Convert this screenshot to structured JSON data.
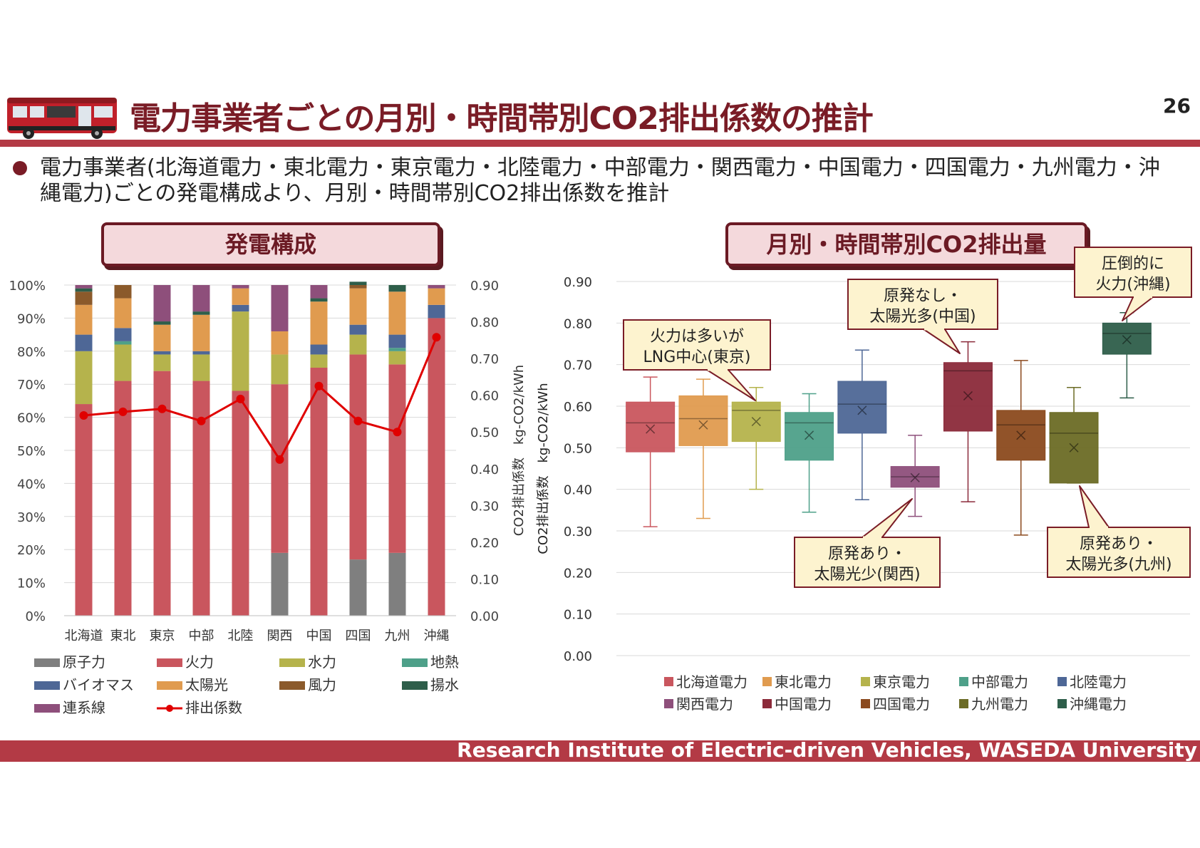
{
  "slide": {
    "title": "電力事業者ごとの月別・時間帯別CO2排出係数の推計",
    "page_number": "26",
    "bullet": "電力事業者(北海道電力・東北電力・東京電力・北陸電力・中部電力・関西電力・中国電力・四国電力・九州電力・沖縄電力)ごとの発電構成より、月別・時間帯別CO2排出係数を推計",
    "left_header": "発電構成",
    "right_header": "月別・時間帯別CO2排出量",
    "footer": "Research Institute of Electric-driven Vehicles, WASEDA University"
  },
  "colors": {
    "brand": "#b33a45",
    "brand_dark": "#7a1c26",
    "box_fill": "#f4d9dc",
    "callout_fill": "#fdf3cf"
  },
  "icons": {
    "bus": "bus-illustration"
  },
  "chart_data": [
    {
      "type": "bar",
      "stacked": true,
      "title": "発電構成",
      "categories": [
        "北海道",
        "東北",
        "東京",
        "中部",
        "北陸",
        "関西",
        "中国",
        "四国",
        "九州",
        "沖縄"
      ],
      "ylim": [
        0,
        100
      ],
      "y_ticks": [
        "0%",
        "10%",
        "20%",
        "30%",
        "40%",
        "50%",
        "60%",
        "70%",
        "80%",
        "90%",
        "100%"
      ],
      "y2lim": [
        0,
        0.9
      ],
      "y2_ticks": [
        "0.00",
        "0.10",
        "0.20",
        "0.30",
        "0.40",
        "0.50",
        "0.60",
        "0.70",
        "0.80",
        "0.90"
      ],
      "y2label": "CO2排出係数　kg-CO2/kWh",
      "series": [
        {
          "name": "原子力",
          "color": "#7f7f7f",
          "values": [
            0,
            0,
            0,
            0,
            0,
            19,
            0,
            17,
            19,
            0
          ]
        },
        {
          "name": "火力",
          "color": "#c9565e",
          "values": [
            64,
            71,
            74,
            71,
            68,
            51,
            75,
            62,
            57,
            90
          ]
        },
        {
          "name": "水力",
          "color": "#b5b34c",
          "values": [
            16,
            11,
            5,
            8,
            24,
            9,
            4,
            6,
            4,
            0
          ]
        },
        {
          "name": "地熱",
          "color": "#4ea089",
          "values": [
            0,
            1,
            0,
            0,
            0,
            0,
            0,
            0,
            1,
            0
          ]
        },
        {
          "name": "バイオマス",
          "color": "#4e6796",
          "values": [
            5,
            4,
            1,
            1,
            2,
            0,
            3,
            3,
            4,
            4
          ]
        },
        {
          "name": "太陽光",
          "color": "#e09b4f",
          "values": [
            9,
            9,
            8,
            11,
            5,
            7,
            13,
            11,
            13,
            5
          ]
        },
        {
          "name": "風力",
          "color": "#8b5a2b",
          "values": [
            4,
            4,
            0,
            0,
            0,
            0,
            0,
            1,
            0,
            0
          ]
        },
        {
          "name": "揚水",
          "color": "#2e5e4a",
          "values": [
            1,
            0,
            1,
            1,
            0,
            0,
            1,
            1,
            2,
            0
          ]
        },
        {
          "name": "連系線",
          "color": "#8e4f7b",
          "values": [
            1,
            0,
            11,
            8,
            1,
            14,
            4,
            0,
            0,
            1
          ]
        }
      ],
      "line_series": {
        "name": "排出係数",
        "color": "#e00000",
        "axis": "y2",
        "values": [
          0.545,
          0.555,
          0.563,
          0.53,
          0.59,
          0.425,
          0.625,
          0.53,
          0.5,
          0.758
        ]
      }
    },
    {
      "type": "box",
      "title": "月別・時間帯別CO2排出量",
      "ylim": [
        0,
        0.9
      ],
      "y_ticks": [
        "0.00",
        "0.10",
        "0.20",
        "0.30",
        "0.40",
        "0.50",
        "0.60",
        "0.70",
        "0.80",
        "0.90"
      ],
      "ylabel": "CO2排出係数　kg-CO2/kWh",
      "series": [
        {
          "name": "北海道電力",
          "color": "#c9565e",
          "min": 0.31,
          "q1": 0.49,
          "median": 0.56,
          "q3": 0.61,
          "max": 0.67,
          "mean": 0.545
        },
        {
          "name": "東北電力",
          "color": "#e09b4f",
          "min": 0.33,
          "q1": 0.505,
          "median": 0.57,
          "q3": 0.625,
          "max": 0.665,
          "mean": 0.555
        },
        {
          "name": "東京電力",
          "color": "#b5b34c",
          "min": 0.4,
          "q1": 0.515,
          "median": 0.59,
          "q3": 0.61,
          "max": 0.645,
          "mean": 0.563
        },
        {
          "name": "中部電力",
          "color": "#4ea089",
          "min": 0.345,
          "q1": 0.47,
          "median": 0.56,
          "q3": 0.585,
          "max": 0.63,
          "mean": 0.53
        },
        {
          "name": "北陸電力",
          "color": "#4e6796",
          "min": 0.375,
          "q1": 0.535,
          "median": 0.605,
          "q3": 0.66,
          "max": 0.735,
          "mean": 0.59
        },
        {
          "name": "関西電力",
          "color": "#8e4f7b",
          "min": 0.335,
          "q1": 0.405,
          "median": 0.43,
          "q3": 0.455,
          "max": 0.53,
          "mean": 0.428
        },
        {
          "name": "中国電力",
          "color": "#8b2a3a",
          "min": 0.37,
          "q1": 0.54,
          "median": 0.685,
          "q3": 0.705,
          "max": 0.755,
          "mean": 0.625
        },
        {
          "name": "四国電力",
          "color": "#8b4a1e",
          "min": 0.29,
          "q1": 0.47,
          "median": 0.555,
          "q3": 0.59,
          "max": 0.71,
          "mean": 0.53
        },
        {
          "name": "九州電力",
          "color": "#6b6b25",
          "min": 0.415,
          "q1": 0.415,
          "median": 0.535,
          "q3": 0.585,
          "max": 0.645,
          "mean": 0.5
        },
        {
          "name": "沖縄電力",
          "color": "#2e5e4a",
          "min": 0.62,
          "q1": 0.725,
          "median": 0.775,
          "q3": 0.8,
          "max": 0.825,
          "mean": 0.76
        }
      ],
      "annotations": [
        {
          "line1": "火力は多いが",
          "line2": "LNG中心(東京)"
        },
        {
          "line1": "原発なし・",
          "line2": "太陽光多(中国)"
        },
        {
          "line1": "圧倒的に",
          "line2": "火力(沖縄)"
        },
        {
          "line1": "原発あり・",
          "line2": "太陽光少(関西)"
        },
        {
          "line1": "原発あり・",
          "line2": "太陽光多(九州)"
        }
      ]
    }
  ]
}
